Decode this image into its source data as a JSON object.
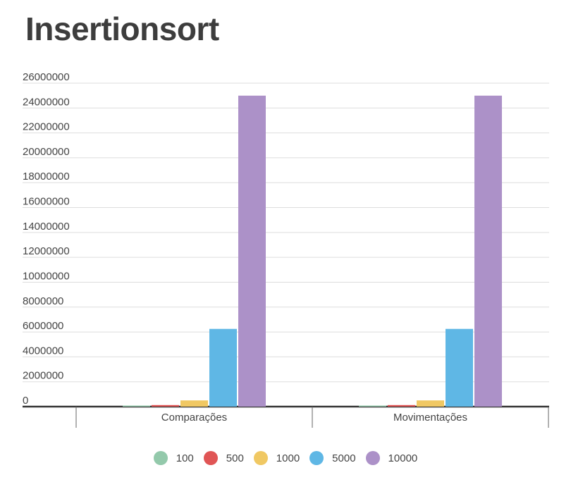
{
  "chart_data": {
    "type": "bar",
    "title": "Insertionsort",
    "xlabel": "",
    "ylabel": "",
    "categories": [
      "Comparações",
      "Movimentações"
    ],
    "series": [
      {
        "name": "100",
        "color": "#93c9ab",
        "values": [
          4950,
          4950
        ]
      },
      {
        "name": "500",
        "color": "#e05555",
        "values": [
          124750,
          124750
        ]
      },
      {
        "name": "1000",
        "color": "#f0c863",
        "values": [
          499500,
          499500
        ]
      },
      {
        "name": "5000",
        "color": "#5fb7e5",
        "values": [
          6247500,
          6247500
        ]
      },
      {
        "name": "10000",
        "color": "#ac91c8",
        "values": [
          24995000,
          24995000
        ]
      }
    ],
    "ylim": [
      0,
      26000000
    ],
    "yticks": [
      0,
      2000000,
      4000000,
      6000000,
      8000000,
      10000000,
      12000000,
      14000000,
      16000000,
      18000000,
      20000000,
      22000000,
      24000000,
      26000000
    ],
    "grid": true,
    "legend": "bottom"
  }
}
